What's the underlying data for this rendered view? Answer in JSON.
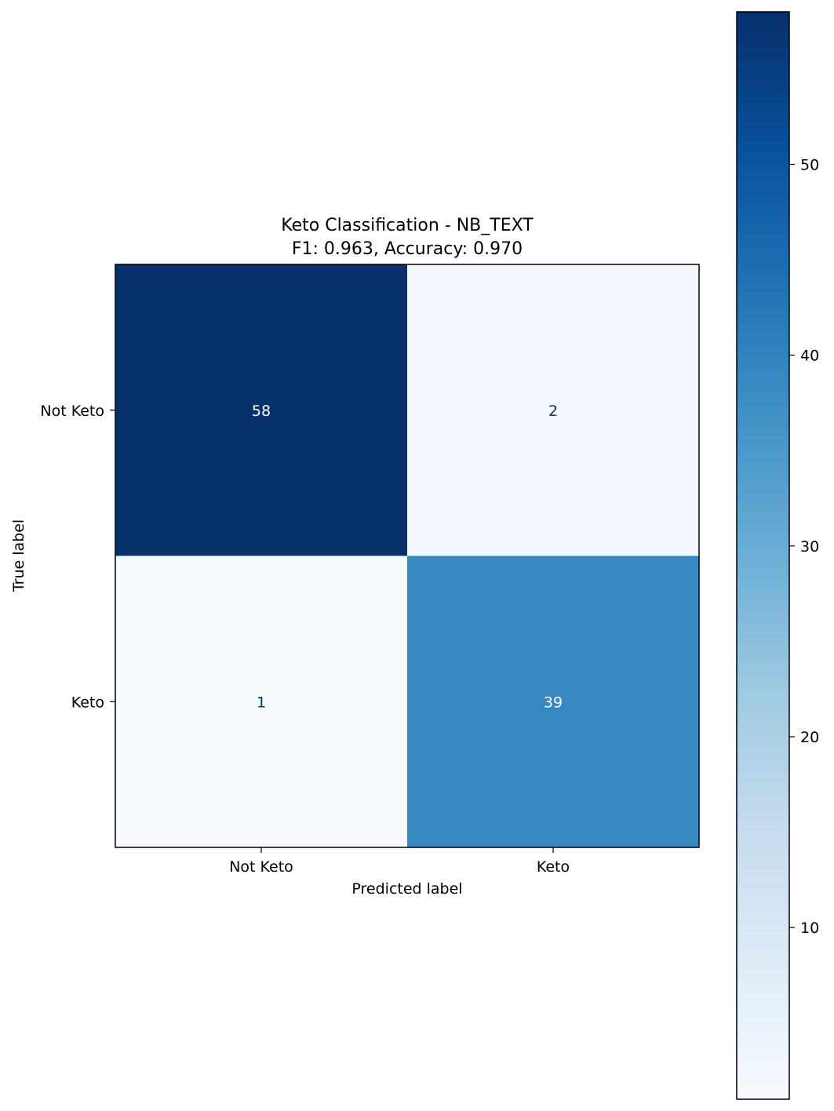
{
  "chart_data": {
    "type": "heatmap",
    "title_line1": "Keto Classification - NB_TEXT",
    "title_line2": "F1: 0.963, Accuracy: 0.970",
    "xlabel": "Predicted label",
    "ylabel": "True label",
    "x_categories": [
      "Not Keto",
      "Keto"
    ],
    "y_categories": [
      "Not Keto",
      "Keto"
    ],
    "values": [
      [
        58,
        2
      ],
      [
        1,
        39
      ]
    ],
    "colormap": "Blues",
    "color_range": [
      1,
      58
    ],
    "colorbar_ticks": [
      10,
      20,
      30,
      40,
      50
    ],
    "colorbar_tick_labels": [
      "10",
      "20",
      "30",
      "40",
      "50"
    ]
  }
}
